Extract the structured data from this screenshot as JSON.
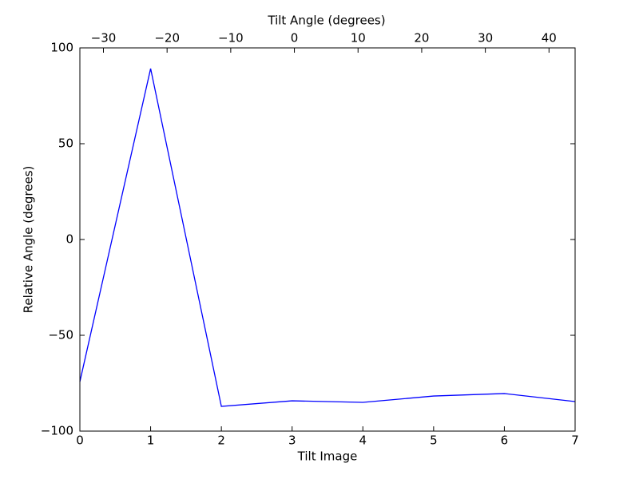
{
  "chart_data": {
    "type": "line",
    "xlabel": "Tilt Image",
    "ylabel": "Relative Angle (degrees)",
    "x2label": "Tilt Angle (degrees)",
    "x": [
      0,
      1,
      2,
      3,
      4,
      5,
      6,
      7
    ],
    "series": [
      {
        "color": "#0000ff",
        "values": [
          -74.2,
          89.2,
          -87.1,
          -84.2,
          -85.0,
          -81.7,
          -80.4,
          -84.6
        ]
      }
    ],
    "xlim": [
      0,
      7
    ],
    "xticks": [
      0,
      1,
      2,
      3,
      4,
      5,
      6,
      7
    ],
    "ylim": [
      -100,
      100
    ],
    "yticks": [
      {
        "value": -100,
        "label": "−100"
      },
      {
        "value": -50,
        "label": "−50"
      },
      0,
      50,
      100
    ],
    "x2lim": [
      -33.7,
      44.1
    ],
    "x2ticks": [
      {
        "value": -30,
        "label": "−30"
      },
      {
        "value": -20,
        "label": "−20"
      },
      {
        "value": -10,
        "label": "−10"
      },
      0,
      10,
      20,
      30,
      40
    ],
    "grid": false
  }
}
